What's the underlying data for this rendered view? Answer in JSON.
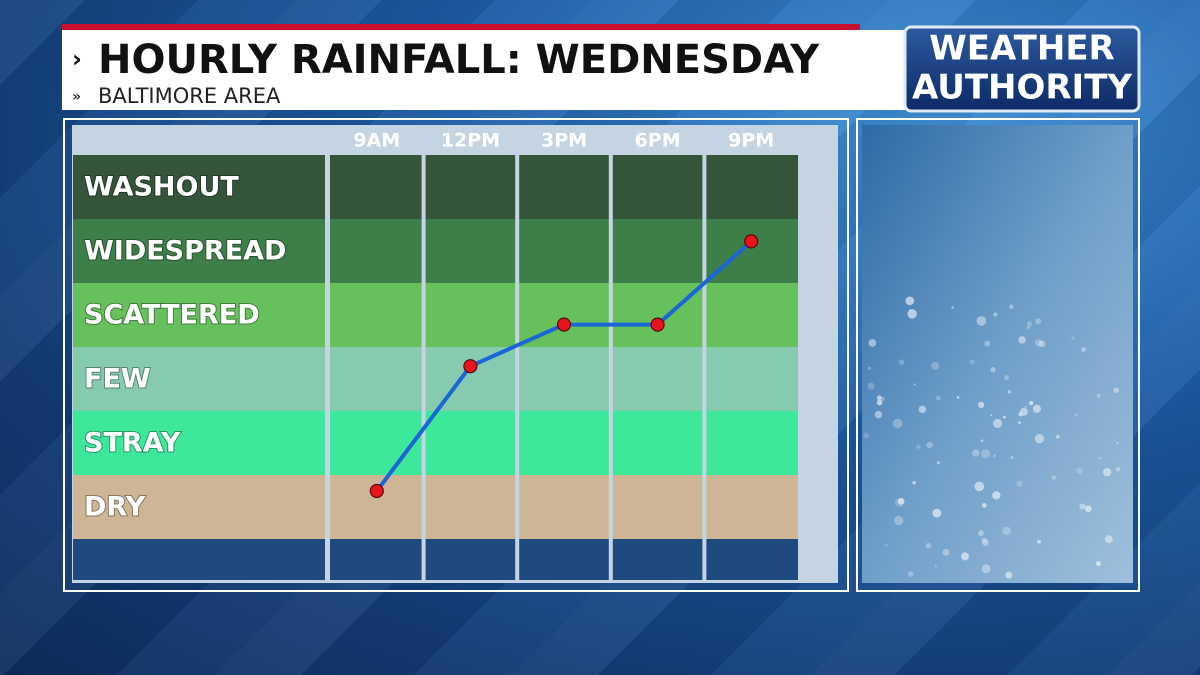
{
  "chart_data": {
    "type": "line",
    "title": "HOURLY RAINFALL: WEDNESDAY",
    "subtitle": "BALTIMORE AREA",
    "categories": [
      "9AM",
      "12PM",
      "3PM",
      "6PM",
      "9PM"
    ],
    "values": [
      0.25,
      2.2,
      2.85,
      2.85,
      4.15
    ],
    "color": "#1a66d6",
    "marker_color": "#e8141b",
    "ylim": [
      -0.5,
      5.5
    ],
    "yticks": [
      {
        "value": 0,
        "label": "DRY"
      },
      {
        "value": 1,
        "label": "STRAY"
      },
      {
        "value": 2,
        "label": "FEW"
      },
      {
        "value": 3,
        "label": "SCATTERED"
      },
      {
        "value": 4,
        "label": "WIDESPREAD"
      },
      {
        "value": 5,
        "label": "WASHOUT"
      }
    ]
  },
  "logo": {
    "line1": "WEATHER",
    "line2": "AUTHORITY"
  }
}
